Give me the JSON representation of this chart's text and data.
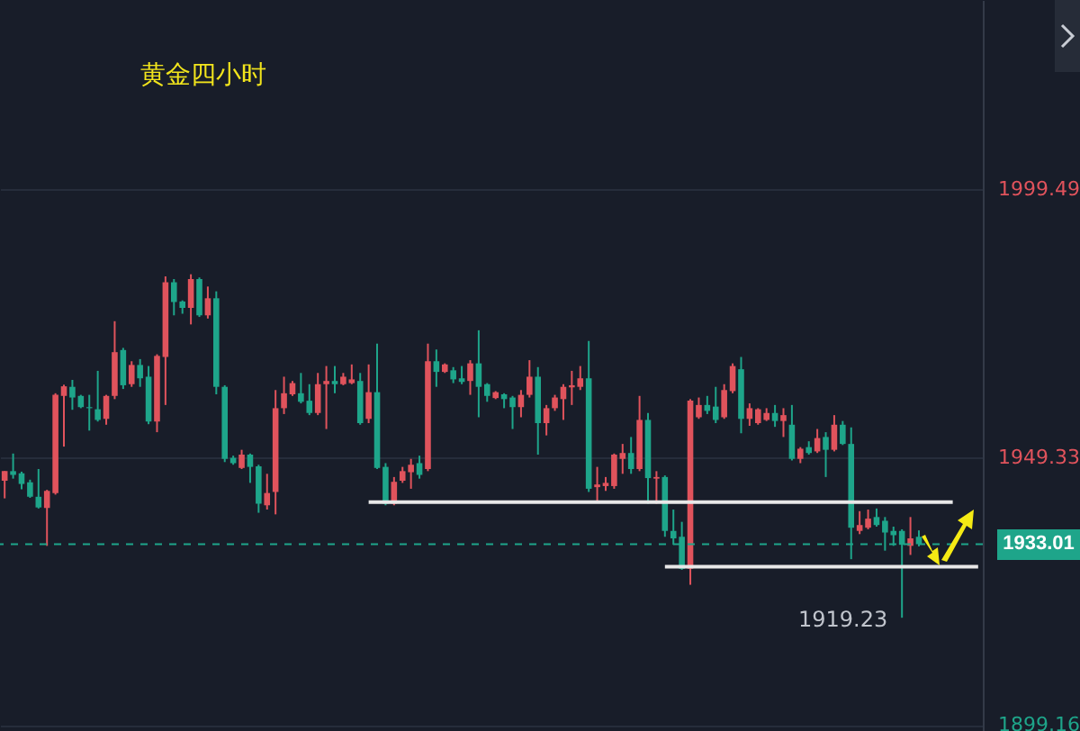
{
  "chart_data": {
    "type": "candlestick",
    "title": "黄金四小时",
    "categories": [
      null,
      null,
      null,
      null,
      null,
      null,
      null,
      null,
      null,
      null,
      null,
      null,
      null,
      null,
      null,
      null,
      null,
      null,
      null,
      null,
      null,
      null,
      null,
      null,
      null,
      null,
      null,
      null,
      null,
      null,
      null,
      null,
      null,
      null,
      null,
      null,
      null,
      null,
      null,
      null,
      null,
      null,
      null,
      null,
      null,
      null,
      null,
      null,
      null,
      null,
      null,
      null,
      null,
      null,
      null,
      null,
      null,
      null,
      null,
      null,
      null,
      null,
      null,
      null,
      null,
      null,
      null,
      null,
      null,
      null,
      null,
      null,
      null,
      null,
      null,
      null,
      null,
      null,
      null,
      null,
      null,
      null,
      null,
      null,
      null,
      null,
      null,
      null,
      null,
      null,
      null,
      null,
      null,
      null,
      null,
      null,
      null,
      null,
      null,
      null,
      null,
      null,
      null,
      null,
      null,
      null,
      null,
      null,
      null,
      null,
      null,
      null,
      null,
      null,
      null,
      null
    ],
    "ohlc": [
      [
        1944.9,
        1946.7,
        1941.6,
        1946.7
      ],
      [
        1946.7,
        1950.0,
        1945.3,
        1946.0
      ],
      [
        1946.3,
        1946.6,
        1943.3,
        1944.3
      ],
      [
        1944.6,
        1945.1,
        1941.7,
        1941.9
      ],
      [
        1941.9,
        1947.1,
        1939.7,
        1939.9
      ],
      [
        1939.8,
        1943.2,
        1932.7,
        1943.0
      ],
      [
        1942.6,
        1961.3,
        1942.3,
        1961.0
      ],
      [
        1960.8,
        1962.9,
        1951.3,
        1962.6
      ],
      [
        1962.5,
        1963.8,
        1958.2,
        1960.5
      ],
      [
        1960.8,
        1961.0,
        1958.5,
        1958.7
      ],
      [
        1958.7,
        1961.0,
        1954.3,
        1958.5
      ],
      [
        1958.3,
        1965.5,
        1956.0,
        1956.3
      ],
      [
        1956.5,
        1961.0,
        1955.4,
        1960.8
      ],
      [
        1960.8,
        1974.8,
        1960.2,
        1969.0
      ],
      [
        1969.4,
        1969.8,
        1962.1,
        1962.8
      ],
      [
        1963.0,
        1967.3,
        1962.5,
        1966.6
      ],
      [
        1966.6,
        1967.7,
        1962.5,
        1964.1
      ],
      [
        1964.4,
        1966.4,
        1955.5,
        1956.0
      ],
      [
        1956.0,
        1968.6,
        1954.0,
        1968.3
      ],
      [
        1968.1,
        1983.2,
        1959.1,
        1982.1
      ],
      [
        1982.1,
        1982.7,
        1975.9,
        1978.4
      ],
      [
        1978.5,
        1978.7,
        1976.2,
        1977.3
      ],
      [
        1977.3,
        1983.6,
        1974.2,
        1982.7
      ],
      [
        1982.7,
        1983.0,
        1975.6,
        1975.9
      ],
      [
        1975.9,
        1981.3,
        1975.3,
        1979.1
      ],
      [
        1979.1,
        1980.4,
        1961.1,
        1962.5
      ],
      [
        1962.5,
        1962.8,
        1948.4,
        1949.0
      ],
      [
        1949.2,
        1949.6,
        1947.9,
        1948.2
      ],
      [
        1947.3,
        1950.7,
        1947.1,
        1949.8
      ],
      [
        1949.8,
        1950.0,
        1944.5,
        1947.5
      ],
      [
        1947.6,
        1947.9,
        1938.9,
        1940.6
      ],
      [
        1940.3,
        1946.2,
        1939.5,
        1942.6
      ],
      [
        1942.8,
        1961.9,
        1938.6,
        1958.5
      ],
      [
        1958.5,
        1964.4,
        1957.4,
        1961.3
      ],
      [
        1961.1,
        1963.6,
        1960.8,
        1963.2
      ],
      [
        1961.3,
        1965.1,
        1959.4,
        1959.7
      ],
      [
        1959.9,
        1963.0,
        1957.2,
        1957.6
      ],
      [
        1957.6,
        1965.1,
        1957.2,
        1963.0
      ],
      [
        1963.0,
        1966.4,
        1954.6,
        1963.6
      ],
      [
        1963.6,
        1966.4,
        1961.3,
        1963.0
      ],
      [
        1963.0,
        1965.1,
        1962.8,
        1964.4
      ],
      [
        1963.2,
        1966.7,
        1963.0,
        1963.9
      ],
      [
        1963.6,
        1965.1,
        1955.4,
        1955.7
      ],
      [
        1956.5,
        1966.7,
        1955.7,
        1961.5
      ],
      [
        1961.5,
        1970.6,
        1947.1,
        1947.3
      ],
      [
        1947.5,
        1948.2,
        1940.3,
        1940.6
      ],
      [
        1940.6,
        1945.6,
        1940.3,
        1944.7
      ],
      [
        1944.9,
        1947.5,
        1944.5,
        1946.7
      ],
      [
        1946.5,
        1949.0,
        1943.4,
        1947.9
      ],
      [
        1948.2,
        1949.6,
        1945.3,
        1946.0
      ],
      [
        1947.1,
        1970.6,
        1946.7,
        1967.3
      ],
      [
        1967.3,
        1969.5,
        1962.5,
        1965.3
      ],
      [
        1965.3,
        1966.9,
        1965.1,
        1966.7
      ],
      [
        1965.6,
        1966.2,
        1963.2,
        1963.9
      ],
      [
        1964.1,
        1966.4,
        1963.0,
        1963.4
      ],
      [
        1963.6,
        1967.5,
        1961.0,
        1966.9
      ],
      [
        1966.9,
        1973.1,
        1956.8,
        1962.5
      ],
      [
        1963.0,
        1963.2,
        1959.7,
        1960.8
      ],
      [
        1960.4,
        1961.7,
        1960.2,
        1961.5
      ],
      [
        1961.1,
        1961.3,
        1958.5,
        1960.2
      ],
      [
        1960.5,
        1960.8,
        1954.6,
        1958.7
      ],
      [
        1958.7,
        1961.9,
        1956.8,
        1961.0
      ],
      [
        1961.0,
        1967.5,
        1960.5,
        1964.4
      ],
      [
        1964.4,
        1966.2,
        1949.8,
        1955.7
      ],
      [
        1955.7,
        1959.1,
        1953.4,
        1958.5
      ],
      [
        1958.5,
        1961.0,
        1958.0,
        1960.5
      ],
      [
        1960.2,
        1963.0,
        1956.3,
        1962.5
      ],
      [
        1962.4,
        1965.5,
        1959.1,
        1962.8
      ],
      [
        1962.5,
        1966.4,
        1961.9,
        1964.1
      ],
      [
        1964.1,
        1971.1,
        1942.8,
        1943.4
      ],
      [
        1943.7,
        1947.5,
        1940.8,
        1944.2
      ],
      [
        1943.9,
        1945.6,
        1943.0,
        1944.5
      ],
      [
        1943.9,
        1950.0,
        1943.4,
        1949.8
      ],
      [
        1949.0,
        1951.8,
        1946.2,
        1950.1
      ],
      [
        1950.1,
        1953.1,
        1946.2,
        1947.1
      ],
      [
        1947.1,
        1960.8,
        1946.7,
        1956.3
      ],
      [
        1956.3,
        1957.6,
        1940.6,
        1945.4
      ],
      [
        1945.3,
        1946.7,
        1940.6,
        1945.6
      ],
      [
        1945.6,
        1945.9,
        1934.4,
        1935.5
      ],
      [
        1935.5,
        1939.5,
        1932.9,
        1934.1
      ],
      [
        1934.4,
        1937.2,
        1928.2,
        1928.4
      ],
      [
        1928.4,
        1960.2,
        1925.4,
        1959.9
      ],
      [
        1956.8,
        1960.5,
        1956.5,
        1959.1
      ],
      [
        1959.1,
        1960.8,
        1957.4,
        1958.0
      ],
      [
        1958.8,
        1962.5,
        1955.7,
        1956.3
      ],
      [
        1956.8,
        1963.0,
        1956.5,
        1961.9
      ],
      [
        1961.7,
        1966.9,
        1961.3,
        1966.4
      ],
      [
        1965.8,
        1968.1,
        1953.8,
        1956.5
      ],
      [
        1956.5,
        1959.4,
        1955.2,
        1958.5
      ],
      [
        1955.7,
        1958.5,
        1955.4,
        1958.3
      ],
      [
        1956.3,
        1958.5,
        1956.1,
        1957.6
      ],
      [
        1957.6,
        1959.1,
        1955.0,
        1956.1
      ],
      [
        1956.1,
        1958.5,
        1953.1,
        1957.2
      ],
      [
        1955.4,
        1959.1,
        1948.7,
        1949.0
      ],
      [
        1949.0,
        1951.2,
        1948.2,
        1950.9
      ],
      [
        1951.2,
        1952.3,
        1949.8,
        1950.1
      ],
      [
        1950.4,
        1954.6,
        1950.1,
        1952.9
      ],
      [
        1953.1,
        1954.0,
        1945.6,
        1950.7
      ],
      [
        1950.7,
        1957.2,
        1950.4,
        1955.4
      ],
      [
        1955.4,
        1956.1,
        1951.6,
        1951.8
      ],
      [
        1951.8,
        1954.9,
        1930.2,
        1936.1
      ],
      [
        1935.5,
        1939.2,
        1934.9,
        1936.6
      ],
      [
        1936.1,
        1939.5,
        1935.8,
        1937.8
      ],
      [
        1938.1,
        1939.7,
        1936.3,
        1936.6
      ],
      [
        1937.4,
        1938.1,
        1931.8,
        1935.2
      ],
      [
        1935.5,
        1936.3,
        1932.7,
        1934.7
      ],
      [
        1935.5,
        1935.8,
        1919.23,
        1932.9
      ],
      [
        1932.7,
        1938.1,
        1931.0,
        1934.1
      ],
      [
        1934.4,
        1935.6,
        1932.6,
        1933.01
      ],
      null,
      null,
      null,
      null,
      null,
      null,
      null
    ],
    "colors": [
      "#e0535c",
      "#1ea58a",
      "#1ea58a",
      "#1ea58a",
      "#1ea58a",
      "#e0535c",
      "#e0535c",
      "#e0535c",
      "#1ea58a",
      "#1ea58a",
      "#1ea58a",
      "#1ea58a",
      "#e0535c",
      "#e0535c",
      "#1ea58a",
      "#e0535c",
      "#1ea58a",
      "#1ea58a",
      "#e0535c",
      "#e0535c",
      "#1ea58a",
      "#1ea58a",
      "#e0535c",
      "#1ea58a",
      "#e0535c",
      "#1ea58a",
      "#1ea58a",
      "#1ea58a",
      "#e0535c",
      "#1ea58a",
      "#1ea58a",
      "#e0535c",
      "#e0535c",
      "#e0535c",
      "#e0535c",
      "#1ea58a",
      "#1ea58a",
      "#e0535c",
      "#e0535c",
      "#1ea58a",
      "#e0535c",
      "#e0535c",
      "#1ea58a",
      "#e0535c",
      "#1ea58a",
      "#1ea58a",
      "#e0535c",
      "#e0535c",
      "#e0535c",
      "#1ea58a",
      "#e0535c",
      "#1ea58a",
      "#e0535c",
      "#1ea58a",
      "#1ea58a",
      "#e0535c",
      "#1ea58a",
      "#1ea58a",
      "#e0535c",
      "#1ea58a",
      "#1ea58a",
      "#e0535c",
      "#e0535c",
      "#1ea58a",
      "#e0535c",
      "#e0535c",
      "#e0535c",
      "#e0535c",
      "#e0535c",
      "#1ea58a",
      "#e0535c",
      "#e0535c",
      "#e0535c",
      "#e0535c",
      "#1ea58a",
      "#e0535c",
      "#1ea58a",
      "#e0535c",
      "#1ea58a",
      "#1ea58a",
      "#1ea58a",
      "#e0535c",
      "#e0535c",
      "#1ea58a",
      "#1ea58a",
      "#e0535c",
      "#e0535c",
      "#1ea58a",
      "#e0535c",
      "#e0535c",
      "#e0535c",
      "#1ea58a",
      "#e0535c",
      "#1ea58a",
      "#e0535c",
      "#1ea58a",
      "#e0535c",
      "#1ea58a",
      "#e0535c",
      "#1ea58a",
      "#1ea58a",
      "#e0535c",
      "#e0535c",
      "#1ea58a",
      "#1ea58a",
      "#1ea58a",
      "#1ea58a",
      "#e0535c",
      "#1ea58a",
      null,
      null,
      null,
      null,
      null,
      null,
      null
    ],
    "series": [
      {
        "type": "line",
        "color": "#e8e8e8",
        "values": [
          null,
          null,
          null,
          null,
          null,
          null,
          null,
          null,
          null,
          null,
          null,
          null,
          null,
          null,
          null,
          null,
          null,
          null,
          null,
          null,
          null,
          null,
          null,
          null,
          null,
          null,
          null,
          null,
          null,
          null,
          null,
          null,
          null,
          null,
          null,
          null,
          null,
          null,
          null,
          null,
          null,
          null,
          null,
          1940.9,
          1940.9,
          1940.9,
          1940.9,
          1940.9,
          1940.9,
          1940.9,
          1940.9,
          1940.9,
          1940.9,
          1940.9,
          1940.9,
          1940.9,
          1940.9,
          1940.9,
          1940.9,
          1940.9,
          1940.9,
          1940.9,
          1940.9,
          1940.9,
          1940.9,
          1940.9,
          1940.9,
          1940.9,
          1940.9,
          1940.9,
          1940.9,
          1940.9,
          1940.9,
          1940.9,
          1940.9,
          1940.9,
          1940.9,
          1940.9,
          1940.9,
          1940.9,
          1940.9,
          1940.9,
          1940.9,
          1940.9,
          1940.9,
          1940.9,
          1940.9,
          1940.9,
          1940.9,
          1940.9,
          1940.9,
          1940.9,
          1940.9,
          1940.9,
          1940.9,
          1940.9,
          1940.9,
          1940.9,
          1940.9,
          1940.9,
          1940.9,
          1940.9,
          1940.9,
          1940.9,
          1940.9,
          1940.9,
          1940.9,
          1940.9,
          1940.9,
          1940.9,
          1940.9,
          1940.9,
          1940.9,
          null,
          null,
          null
        ]
      },
      {
        "type": "line",
        "color": "#e8e8e8",
        "values": [
          null,
          null,
          null,
          null,
          null,
          null,
          null,
          null,
          null,
          null,
          null,
          null,
          null,
          null,
          null,
          null,
          null,
          null,
          null,
          null,
          null,
          null,
          null,
          null,
          null,
          null,
          null,
          null,
          null,
          null,
          null,
          null,
          null,
          null,
          null,
          null,
          null,
          null,
          null,
          null,
          null,
          null,
          null,
          null,
          null,
          null,
          null,
          null,
          null,
          null,
          null,
          null,
          null,
          null,
          null,
          null,
          null,
          null,
          null,
          null,
          null,
          null,
          null,
          null,
          null,
          null,
          null,
          null,
          null,
          null,
          null,
          null,
          null,
          null,
          null,
          null,
          null,
          null,
          1928.8,
          1928.8,
          1928.8,
          1928.8,
          1928.8,
          1928.8,
          1928.8,
          1928.8,
          1928.8,
          1928.8,
          1928.8,
          1928.8,
          1928.8,
          1928.8,
          1928.8,
          1928.8,
          1928.8,
          1928.8,
          1928.8,
          1928.8,
          1928.8,
          1928.8,
          1928.8,
          1928.8,
          1928.8,
          1928.8,
          1928.8,
          1928.8,
          1928.8,
          1928.8,
          1928.8,
          1928.8,
          1928.8,
          1928.8,
          1928.8,
          1928.8,
          1928.8,
          1928.8
        ]
      }
    ],
    "ylim": [
      1898,
      2035
    ],
    "yticks": [
      1899.16,
      1949.33,
      1999.49
    ],
    "grid": "y",
    "tick_labels": "y",
    "ref_lines": [
      {
        "axis": "y",
        "value": 1933.01,
        "label": "1933.01",
        "color": "#1ea58a",
        "line_style": "dashed"
      }
    ],
    "annotations": [
      "1919.23"
    ]
  }
}
